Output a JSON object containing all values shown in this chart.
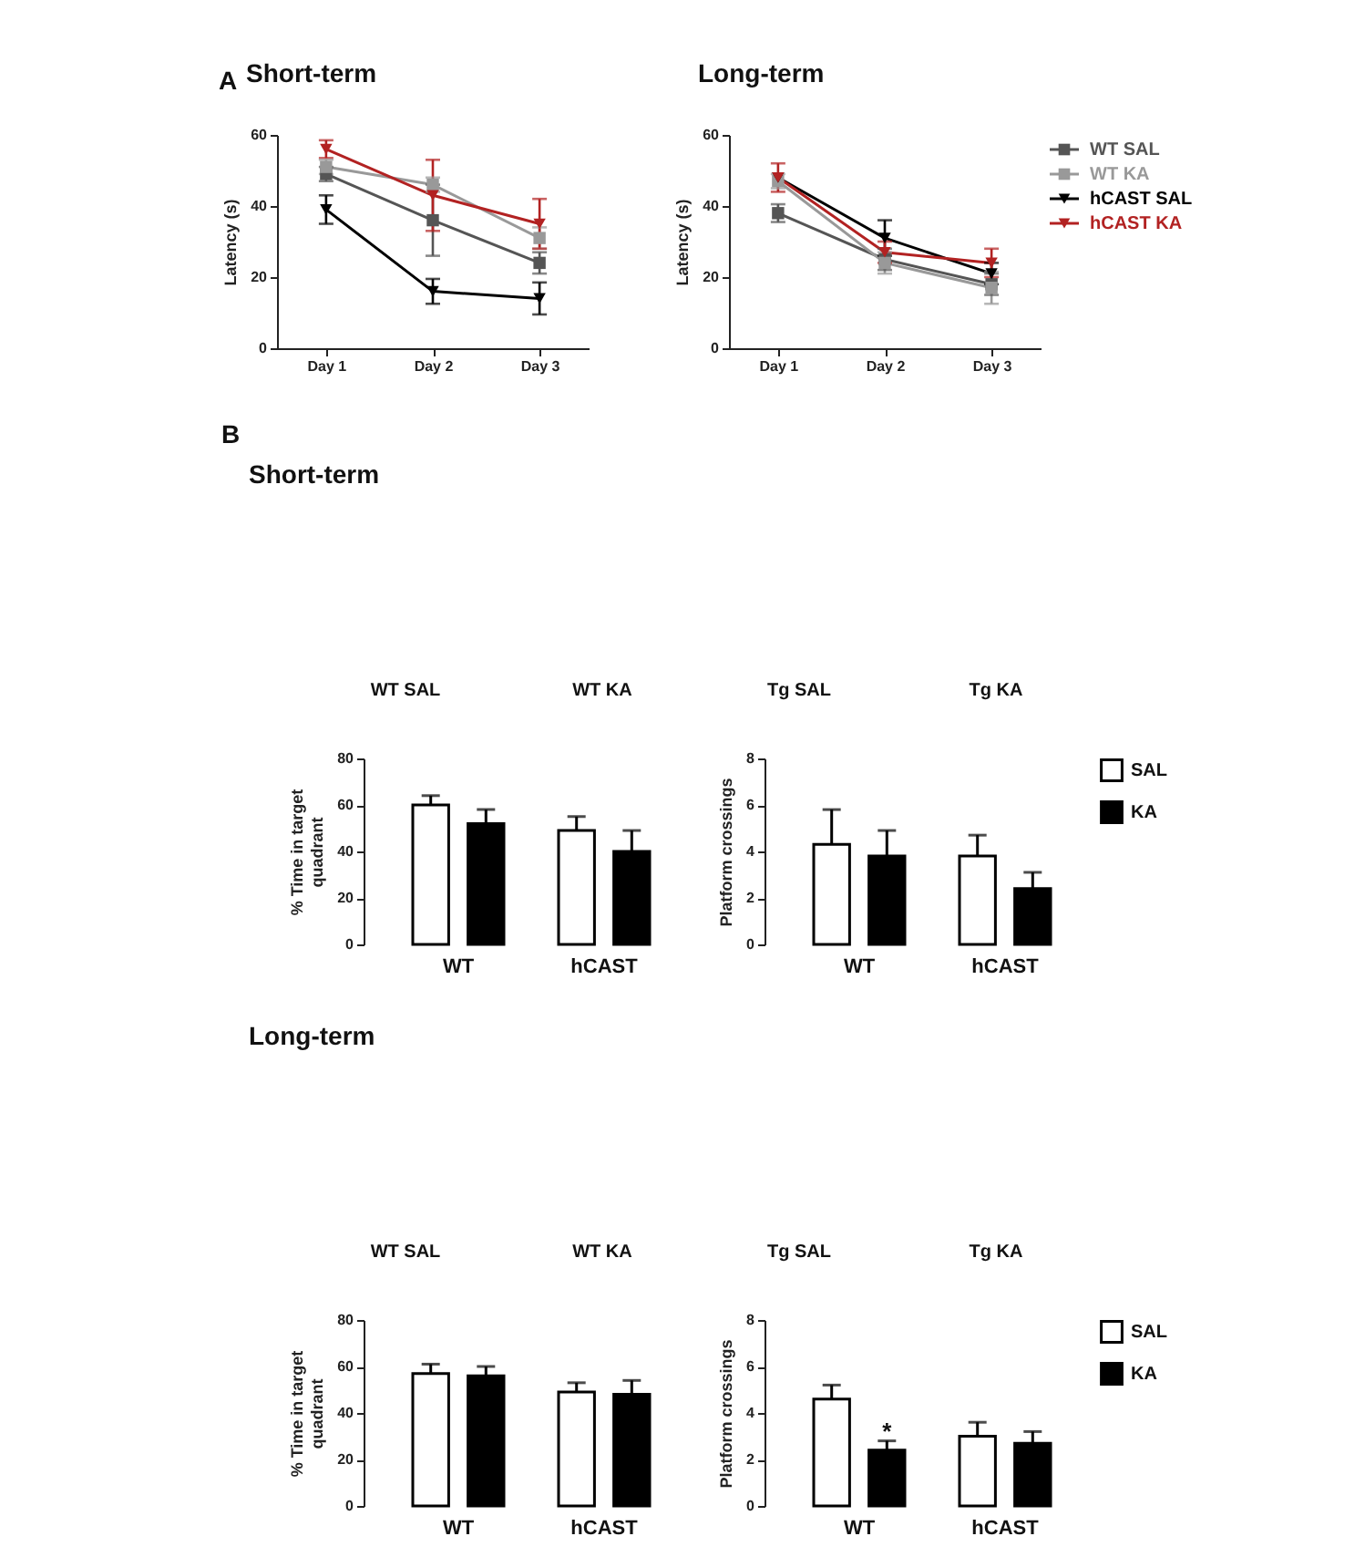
{
  "chart_data": [
    {
      "type": "line",
      "title": "Short-term",
      "annotations": [
        "A"
      ],
      "ylabel": "Latency (s)",
      "categories": [
        "Day 1",
        "Day 2",
        "Day 3"
      ],
      "ylim": [
        0,
        60
      ],
      "yticks": [
        0,
        20,
        40,
        60
      ],
      "grid": false,
      "legend": false,
      "series": [
        {
          "color": "#555555",
          "marker": "square",
          "values": [
            49,
            36,
            24
          ],
          "errors": [
            2,
            10,
            3
          ]
        },
        {
          "color": "#999999",
          "marker": "square",
          "values": [
            51,
            46,
            31
          ],
          "errors": [
            2,
            2,
            3
          ]
        },
        {
          "color": "#000000",
          "marker": "triangle",
          "values": [
            39,
            16,
            14
          ],
          "errors": [
            4,
            3.5,
            4.5
          ]
        },
        {
          "color": "#b22222",
          "marker": "triangle",
          "values": [
            56,
            43,
            35
          ],
          "errors": [
            2.5,
            10,
            7
          ]
        }
      ]
    },
    {
      "type": "line",
      "title": "Long-term",
      "ylabel": "Latency (s)",
      "categories": [
        "Day 1",
        "Day 2",
        "Day 3"
      ],
      "ylim": [
        0,
        60
      ],
      "yticks": [
        0,
        20,
        40,
        60
      ],
      "grid": false,
      "legend": "top right",
      "series": [
        {
          "name": "WT SAL",
          "color": "#555555",
          "marker": "square",
          "values": [
            38,
            25,
            18
          ],
          "errors": [
            2.5,
            3,
            3
          ]
        },
        {
          "name": "WT KA",
          "color": "#999999",
          "marker": "square",
          "values": [
            47,
            24,
            17
          ],
          "errors": [
            2,
            3,
            4.5
          ]
        },
        {
          "name": "hCAST SAL",
          "color": "#000000",
          "marker": "triangle",
          "values": [
            48,
            31,
            21
          ],
          "errors": [
            null,
            5,
            3
          ]
        },
        {
          "name": "hCAST KA",
          "color": "#b22222",
          "marker": "triangle",
          "values": [
            48,
            27,
            24
          ],
          "errors": [
            4,
            3,
            4
          ]
        }
      ]
    },
    {
      "type": "other",
      "title": "Short-term",
      "annotations": [
        "B"
      ],
      "categories": [
        "WT SAL",
        "WT KA",
        "Tg SAL",
        "Tg KA"
      ]
    },
    {
      "type": "bar",
      "ylabel": "% Time in target quadrant",
      "categories": [
        "WT",
        "hCAST"
      ],
      "ylim": [
        0,
        80
      ],
      "yticks": [
        0,
        20,
        40,
        60,
        80
      ],
      "grid": false,
      "legend": false,
      "series": [
        {
          "color": "#ffffff",
          "values": [
            60,
            49
          ],
          "errors": [
            [
              60,
              64
            ],
            [
              49,
              55
            ]
          ]
        },
        {
          "color": "#000000",
          "values": [
            52,
            40
          ],
          "errors": [
            [
              52,
              58
            ],
            [
              40,
              49
            ]
          ]
        }
      ]
    },
    {
      "type": "bar",
      "ylabel": "Platform crossings",
      "categories": [
        "WT",
        "hCAST"
      ],
      "ylim": [
        0,
        8
      ],
      "yticks": [
        0,
        2,
        4,
        6,
        8
      ],
      "grid": false,
      "legend": "top right",
      "series": [
        {
          "name": "SAL",
          "color": "#ffffff",
          "values": [
            4.3,
            3.8
          ],
          "errors": [
            [
              4.3,
              5.8
            ],
            [
              3.8,
              4.7
            ]
          ]
        },
        {
          "name": "KA",
          "color": "#000000",
          "values": [
            3.8,
            2.4
          ],
          "errors": [
            [
              3.8,
              4.9
            ],
            [
              2.4,
              3.1
            ]
          ]
        }
      ]
    },
    {
      "type": "other",
      "title": "Long-term",
      "categories": [
        "WT SAL",
        "WT KA",
        "Tg SAL",
        "Tg KA"
      ]
    },
    {
      "type": "bar",
      "ylabel": "% Time in target quadrant",
      "categories": [
        "WT",
        "hCAST"
      ],
      "ylim": [
        0,
        80
      ],
      "yticks": [
        0,
        20,
        40,
        60,
        80
      ],
      "grid": false,
      "legend": false,
      "series": [
        {
          "color": "#ffffff",
          "values": [
            57,
            49
          ],
          "errors": [
            [
              57,
              61
            ],
            [
              49,
              53
            ]
          ]
        },
        {
          "color": "#000000",
          "values": [
            56,
            48
          ],
          "errors": [
            [
              56,
              60
            ],
            [
              48,
              54
            ]
          ]
        }
      ]
    },
    {
      "type": "bar",
      "ylabel": "Platform crossings",
      "categories": [
        "WT",
        "hCAST"
      ],
      "ylim": [
        0,
        8
      ],
      "yticks": [
        0,
        2,
        4,
        6,
        8
      ],
      "grid": false,
      "legend": "top right",
      "series": [
        {
          "name": "SAL",
          "color": "#ffffff",
          "values": [
            4.6,
            3.0
          ],
          "errors": [
            [
              4.6,
              5.2
            ],
            [
              3.0,
              3.6
            ]
          ]
        },
        {
          "name": "KA",
          "color": "#000000",
          "values": [
            2.4,
            2.7
          ],
          "errors": [
            [
              2.4,
              2.8
            ],
            [
              2.7,
              3.2
            ]
          ],
          "value_labels": [
            "*",
            null
          ]
        }
      ]
    }
  ]
}
